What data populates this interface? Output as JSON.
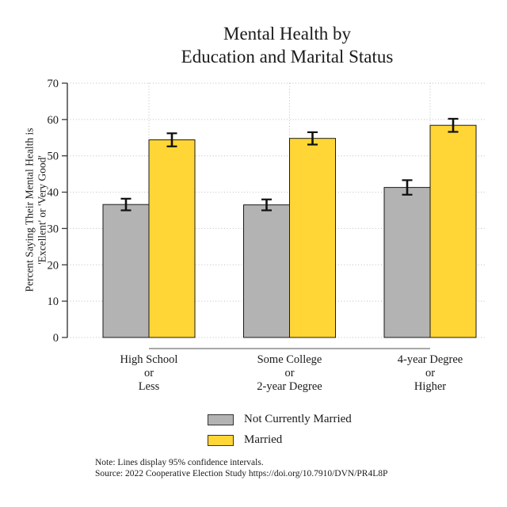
{
  "title": {
    "line1": "Mental Health by",
    "line2": "Education and Marital Status"
  },
  "chart_data": {
    "type": "bar",
    "title": "Mental Health by Education and Marital Status",
    "ylabel_line1": "Percent Saying Their Mental Health is",
    "ylabel_line2": "'Excellent' or 'Very Good'",
    "ylim": [
      0,
      70
    ],
    "yticks": [
      0,
      10,
      20,
      30,
      40,
      50,
      60,
      70
    ],
    "grid": "dotted horizontal gridlines at each ytick; dotted vertical gridlines at group centers",
    "legend_position": "bottom",
    "categories": [
      {
        "lines": [
          "High School",
          "or",
          "Less"
        ]
      },
      {
        "lines": [
          "Some College",
          "or",
          "2-year Degree"
        ]
      },
      {
        "lines": [
          "4-year Degree",
          "or",
          "Higher"
        ]
      }
    ],
    "series": [
      {
        "name": "Not Currently Married",
        "color": "#b3b3b3",
        "values": [
          36.6,
          36.5,
          41.3
        ],
        "ci_low": [
          35.0,
          35.0,
          39.3
        ],
        "ci_high": [
          38.2,
          38.0,
          43.3
        ]
      },
      {
        "name": "Married",
        "color": "#ffd636",
        "values": [
          54.4,
          54.8,
          58.4
        ],
        "ci_low": [
          52.6,
          53.1,
          56.6
        ],
        "ci_high": [
          56.2,
          56.5,
          60.2
        ]
      }
    ],
    "error_bars": "95% confidence intervals"
  },
  "notes": {
    "line1": "Note: Lines display 95% confidence intervals.",
    "line2": "Source: 2022 Cooperative Election Study https://doi.org/10.7910/DVN/PR4L8P"
  },
  "colors": {
    "bar_border": "#1a1a1a",
    "error_bar": "#111111",
    "gridline": "#bcbcbc",
    "y_axis": "#3a3a3a",
    "category_axis": "#8c8c8c",
    "text": "#1a1a1a",
    "background": "#ffffff"
  }
}
